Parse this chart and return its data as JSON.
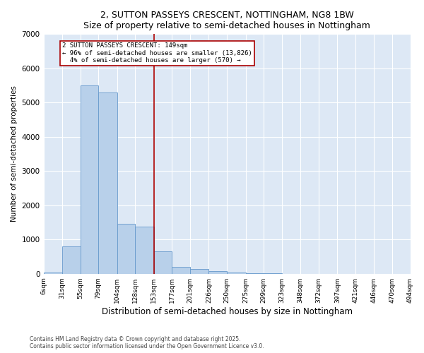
{
  "title": "2, SUTTON PASSEYS CRESCENT, NOTTINGHAM, NG8 1BW",
  "subtitle": "Size of property relative to semi-detached houses in Nottingham",
  "xlabel": "Distribution of semi-detached houses by size in Nottingham",
  "ylabel": "Number of semi-detached properties",
  "property_label": "2 SUTTON PASSEYS CRESCENT: 149sqm",
  "pct_smaller": 96,
  "count_smaller": 13826,
  "pct_larger": 4,
  "count_larger": 570,
  "bin_edges": [
    6,
    31,
    55,
    79,
    104,
    128,
    153,
    177,
    201,
    226,
    250,
    275,
    299,
    323,
    348,
    372,
    397,
    421,
    446,
    470,
    494
  ],
  "bin_labels": [
    "6sqm",
    "31sqm",
    "55sqm",
    "79sqm",
    "104sqm",
    "128sqm",
    "153sqm",
    "177sqm",
    "201sqm",
    "226sqm",
    "250sqm",
    "275sqm",
    "299sqm",
    "323sqm",
    "348sqm",
    "372sqm",
    "397sqm",
    "421sqm",
    "446sqm",
    "470sqm",
    "494sqm"
  ],
  "counts": [
    30,
    800,
    5500,
    5300,
    1450,
    1380,
    650,
    200,
    130,
    70,
    30,
    10,
    5,
    0,
    0,
    0,
    0,
    0,
    0,
    0
  ],
  "bar_color": "#b8d0ea",
  "bar_edge_color": "#6699cc",
  "vline_color": "#aa0000",
  "vline_x": 153,
  "annotation_box_color": "#aa0000",
  "background_color": "#dde8f5",
  "grid_color": "#ffffff",
  "ylim": [
    0,
    7000
  ],
  "yticks": [
    0,
    1000,
    2000,
    3000,
    4000,
    5000,
    6000,
    7000
  ],
  "footer1": "Contains HM Land Registry data © Crown copyright and database right 2025.",
  "footer2": "Contains public sector information licensed under the Open Government Licence v3.0."
}
